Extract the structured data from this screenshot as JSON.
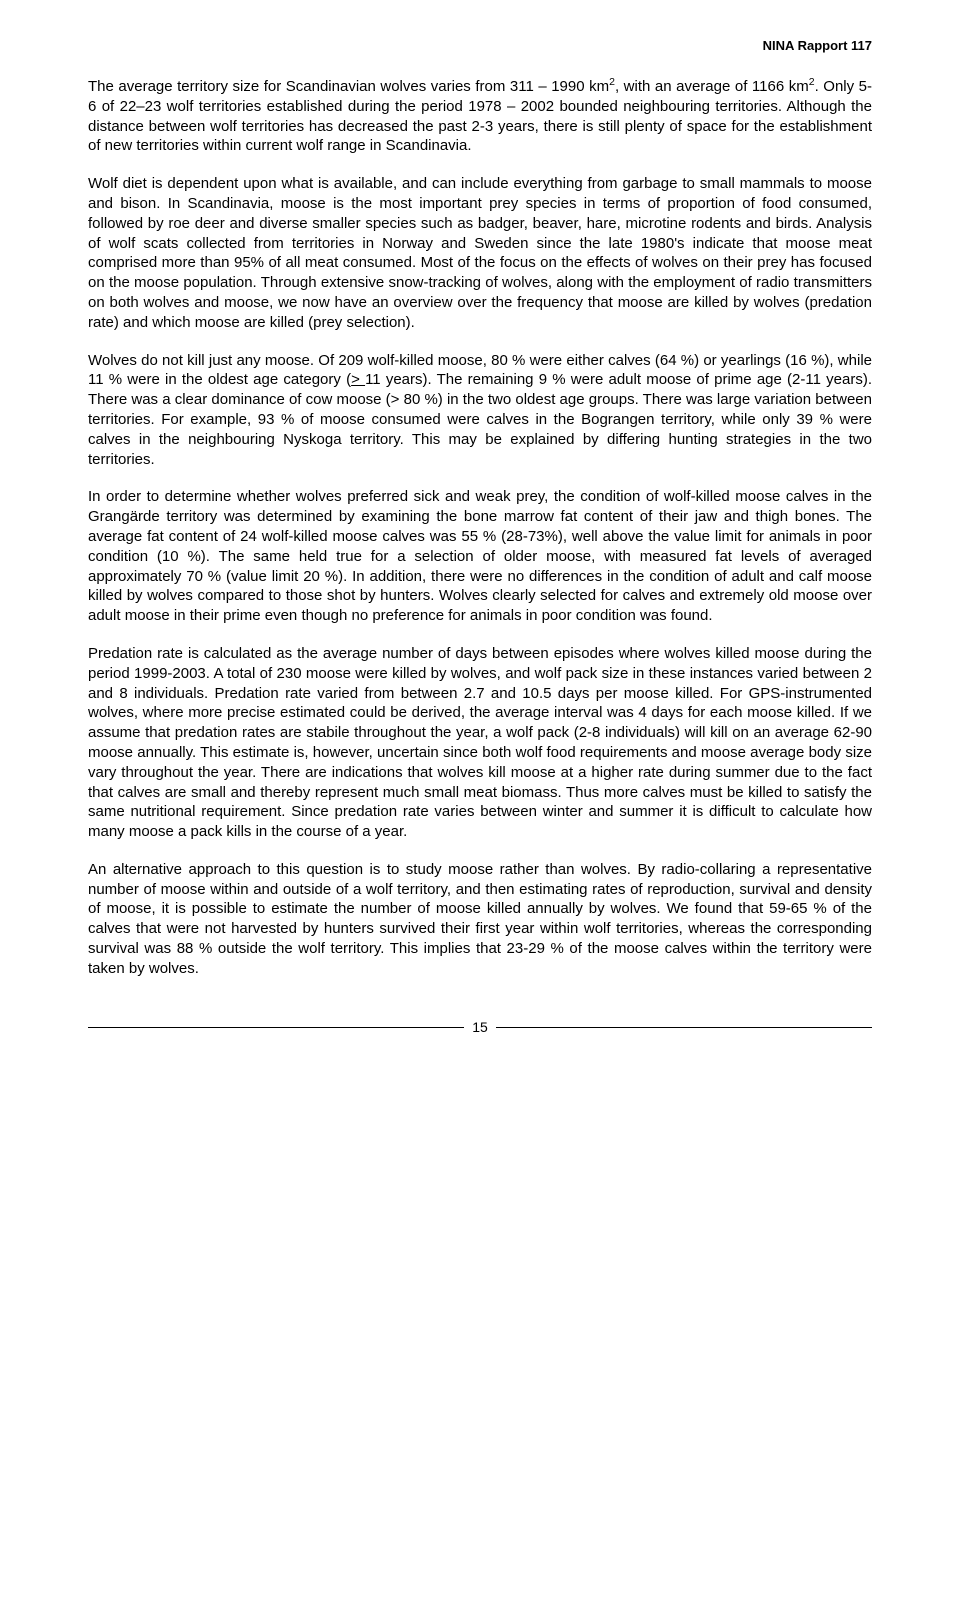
{
  "header": {
    "label": "NINA Rapport 117"
  },
  "paragraphs": {
    "p1": "The average territory size for Scandinavian wolves varies from 311 – 1990 km², with an average of 1166 km². Only 5-6 of 22–23 wolf territories established during the period 1978 – 2002 bounded neighbouring territories. Although the distance between wolf territories has decreased the past 2-3 years, there is still plenty of space for the establishment of new territories within current wolf range in Scandinavia.",
    "p2": "Wolf diet is dependent upon what is available, and can include everything from garbage to small mammals to moose and bison. In Scandinavia, moose is the most important prey species in terms of proportion of food consumed, followed by roe deer and diverse smaller species such as badger, beaver, hare, microtine rodents and birds. Analysis of wolf scats collected from territories in Norway and Sweden since the late 1980's indicate that moose meat comprised more than 95% of all meat consumed. Most of the focus on the effects of wolves on their prey has focused on the moose population. Through extensive snow-tracking of wolves, along with the employment of radio transmitters on both wolves and moose, we now have an overview over the frequency that moose are killed by wolves (predation rate) and which moose are killed (prey selection).",
    "p3a": "Wolves do not kill just any moose. Of 209 wolf-killed moose, 80 % were either calves (64 %) or yearlings (16 %), while 11 % were in the oldest age category (",
    "p3gte": "> ",
    "p3b": "11 years). The remaining 9 % were adult moose of prime age (2-11 years). There was a clear dominance of cow moose (> 80 %) in the two oldest age groups. There was large variation between territories. For example, 93 % of moose consumed were calves in the Bograngen territory, while only 39 % were calves in the neighbouring Nyskoga territory. This may be explained by differing hunting strategies in the two territories.",
    "p4": "In order to determine whether wolves preferred sick and weak prey, the condition of wolf-killed moose calves in the Grangärde territory was determined by examining the bone marrow fat content of their jaw and thigh bones. The average fat content of 24 wolf-killed moose calves was 55 % (28-73%), well above the value limit for animals in poor condition (10 %). The same held true for a selection of older moose, with measured fat levels of averaged approximately 70 % (value limit 20 %). In addition, there were no differences in the condition of adult and calf moose killed by wolves compared to those shot by hunters. Wolves clearly selected for calves and extremely old moose over adult moose in their prime even though no preference for animals in poor condition was found.",
    "p5": "Predation rate is calculated as the average number of days between episodes where wolves killed moose during the period 1999-2003. A total of 230 moose were killed by wolves, and wolf pack size in these instances varied between 2 and 8 individuals. Predation rate varied from between 2.7 and 10.5 days per moose killed. For GPS-instrumented wolves, where more precise estimated could be derived, the average interval was 4 days for each moose killed. If we assume that predation rates are stabile throughout the year, a wolf pack (2-8 individuals) will kill on an average 62-90 moose annually. This estimate is, however, uncertain since both wolf food requirements and moose average body size vary throughout the year. There are indications that wolves kill moose at a higher rate during summer due to the fact that calves are small and thereby represent much small meat biomass. Thus more calves must be killed to satisfy the same nutritional requirement. Since predation rate varies between winter and summer it is difficult to calculate how many moose a pack kills in the course of a year.",
    "p6": "An alternative approach to this question is to study moose rather than wolves. By radio-collaring a representative number of moose within and outside of a wolf territory, and then estimating rates of reproduction, survival and density of moose, it is possible to estimate the number of moose killed annually by wolves. We found that 59-65 % of the calves that were not harvested by hunters survived their first year within wolf territories, whereas the corresponding survival was 88 % outside the wolf territory. This implies that 23-29 % of the moose calves within the territory were taken by wolves."
  },
  "pageNumber": "15"
}
